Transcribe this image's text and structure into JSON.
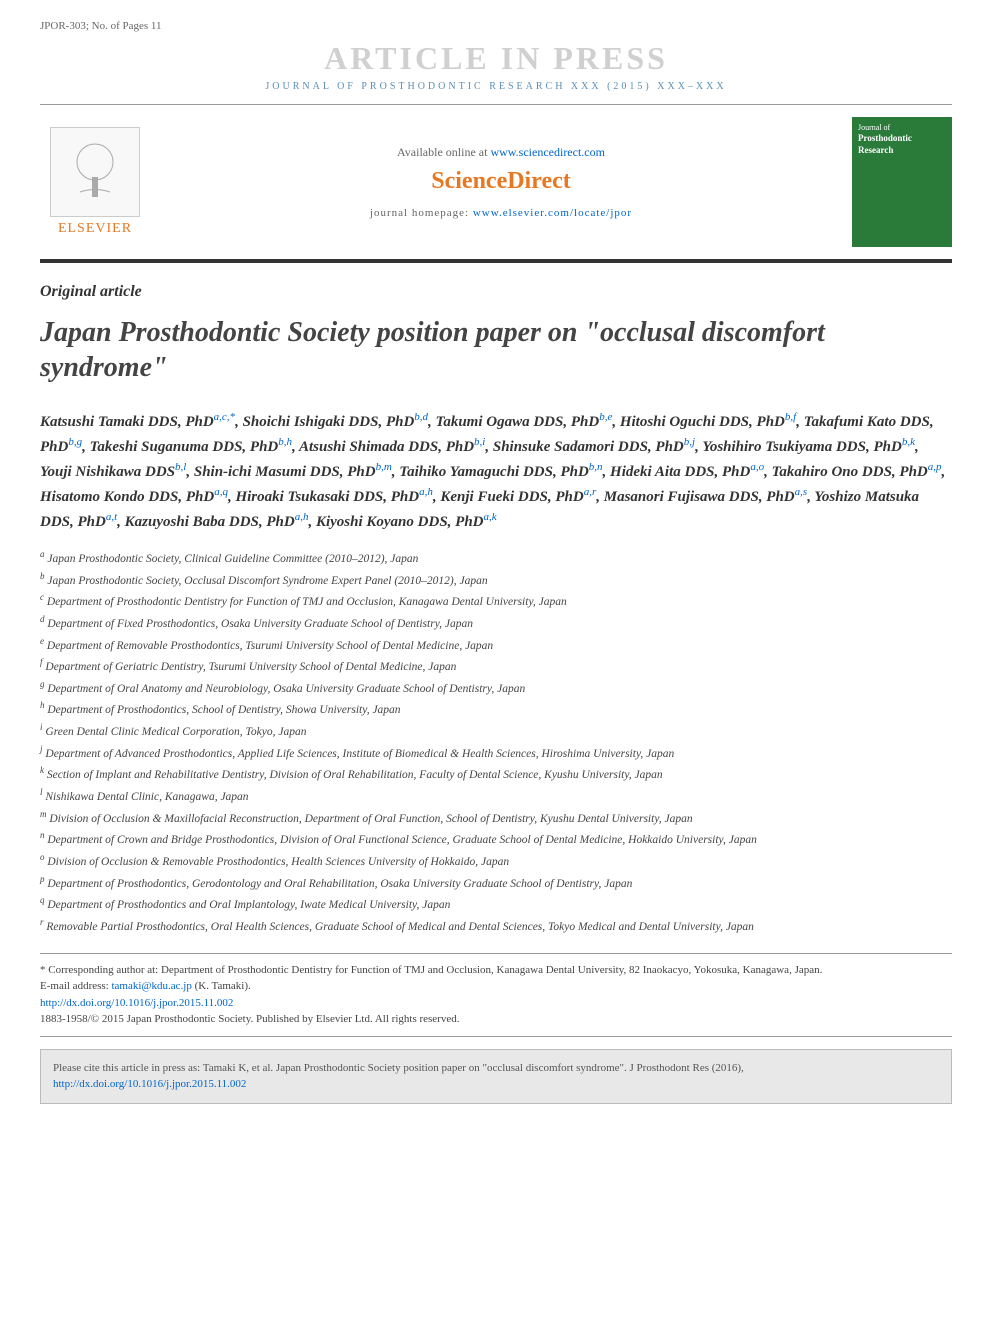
{
  "header": {
    "doc_id": "JPOR-303; No. of Pages 11",
    "watermark": "ARTICLE IN PRESS",
    "journal_ref": "JOURNAL OF PROSTHODONTIC RESEARCH XXX (2015) XXX–XXX",
    "available_text": "Available online at ",
    "available_link": "www.sciencedirect.com",
    "sciencedirect": "ScienceDirect",
    "homepage_label": "journal homepage: ",
    "homepage_link": "www.elsevier.com/locate/jpor",
    "elsevier": "ELSEVIER",
    "cover_journal": "Journal of",
    "cover_title": "Prosthodontic Research"
  },
  "article": {
    "type": "Original article",
    "title": "Japan Prosthodontic Society position paper on \"occlusal discomfort syndrome\""
  },
  "authors": [
    {
      "name": "Katsushi Tamaki",
      "deg": "DDS, PhD",
      "aff": "a,c,*"
    },
    {
      "name": "Shoichi Ishigaki",
      "deg": "DDS, PhD",
      "aff": "b,d"
    },
    {
      "name": "Takumi Ogawa",
      "deg": "DDS, PhD",
      "aff": "b,e"
    },
    {
      "name": "Hitoshi Oguchi",
      "deg": "DDS, PhD",
      "aff": "b,f"
    },
    {
      "name": "Takafumi Kato",
      "deg": "DDS, PhD",
      "aff": "b,g"
    },
    {
      "name": "Takeshi Suganuma",
      "deg": "DDS, PhD",
      "aff": "b,h"
    },
    {
      "name": "Atsushi Shimada",
      "deg": "DDS, PhD",
      "aff": "b,i"
    },
    {
      "name": "Shinsuke Sadamori",
      "deg": "DDS, PhD",
      "aff": "b,j"
    },
    {
      "name": "Yoshihiro Tsukiyama",
      "deg": "DDS, PhD",
      "aff": "b,k"
    },
    {
      "name": "Youji Nishikawa",
      "deg": "DDS",
      "aff": "b,l"
    },
    {
      "name": "Shin-ichi Masumi",
      "deg": "DDS, PhD",
      "aff": "b,m"
    },
    {
      "name": "Taihiko Yamaguchi",
      "deg": "DDS, PhD",
      "aff": "b,n"
    },
    {
      "name": "Hideki Aita",
      "deg": "DDS, PhD",
      "aff": "a,o"
    },
    {
      "name": "Takahiro Ono",
      "deg": "DDS, PhD",
      "aff": "a,p"
    },
    {
      "name": "Hisatomo Kondo",
      "deg": "DDS, PhD",
      "aff": "a,q"
    },
    {
      "name": "Hiroaki Tsukasaki",
      "deg": "DDS, PhD",
      "aff": "a,h"
    },
    {
      "name": "Kenji Fueki",
      "deg": "DDS, PhD",
      "aff": "a,r"
    },
    {
      "name": "Masanori Fujisawa",
      "deg": "DDS, PhD",
      "aff": "a,s"
    },
    {
      "name": "Yoshizo Matsuka",
      "deg": "DDS, PhD",
      "aff": "a,t"
    },
    {
      "name": "Kazuyoshi Baba",
      "deg": "DDS, PhD",
      "aff": "a,h"
    },
    {
      "name": "Kiyoshi Koyano",
      "deg": "DDS, PhD",
      "aff": "a,k"
    }
  ],
  "affiliations": [
    {
      "key": "a",
      "text": "Japan Prosthodontic Society, Clinical Guideline Committee (2010–2012), Japan"
    },
    {
      "key": "b",
      "text": "Japan Prosthodontic Society, Occlusal Discomfort Syndrome Expert Panel (2010–2012), Japan"
    },
    {
      "key": "c",
      "text": "Department of Prosthodontic Dentistry for Function of TMJ and Occlusion, Kanagawa Dental University, Japan"
    },
    {
      "key": "d",
      "text": "Department of Fixed Prosthodontics, Osaka University Graduate School of Dentistry, Japan"
    },
    {
      "key": "e",
      "text": "Department of Removable Prosthodontics, Tsurumi University School of Dental Medicine, Japan"
    },
    {
      "key": "f",
      "text": "Department of Geriatric Dentistry, Tsurumi University School of Dental Medicine, Japan"
    },
    {
      "key": "g",
      "text": "Department of Oral Anatomy and Neurobiology, Osaka University Graduate School of Dentistry, Japan"
    },
    {
      "key": "h",
      "text": "Department of Prosthodontics, School of Dentistry, Showa University, Japan"
    },
    {
      "key": "i",
      "text": "Green Dental Clinic Medical Corporation, Tokyo, Japan"
    },
    {
      "key": "j",
      "text": "Department of Advanced Prosthodontics, Applied Life Sciences, Institute of Biomedical & Health Sciences, Hiroshima University, Japan"
    },
    {
      "key": "k",
      "text": "Section of Implant and Rehabilitative Dentistry, Division of Oral Rehabilitation, Faculty of Dental Science, Kyushu University, Japan"
    },
    {
      "key": "l",
      "text": "Nishikawa Dental Clinic, Kanagawa, Japan"
    },
    {
      "key": "m",
      "text": "Division of Occlusion & Maxillofacial Reconstruction, Department of Oral Function, School of Dentistry, Kyushu Dental University, Japan"
    },
    {
      "key": "n",
      "text": "Department of Crown and Bridge Prosthodontics, Division of Oral Functional Science, Graduate School of Dental Medicine, Hokkaido University, Japan"
    },
    {
      "key": "o",
      "text": "Division of Occlusion & Removable Prosthodontics, Health Sciences University of Hokkaido, Japan"
    },
    {
      "key": "p",
      "text": "Department of Prosthodontics, Gerodontology and Oral Rehabilitation, Osaka University Graduate School of Dentistry, Japan"
    },
    {
      "key": "q",
      "text": "Department of Prosthodontics and Oral Implantology, Iwate Medical University, Japan"
    },
    {
      "key": "r",
      "text": "Removable Partial Prosthodontics, Oral Health Sciences, Graduate School of Medical and Dental Sciences, Tokyo Medical and Dental University, Japan"
    }
  ],
  "footer": {
    "corresponding": "* Corresponding author at: Department of Prosthodontic Dentistry for Function of TMJ and Occlusion, Kanagawa Dental University, 82 Inaokacyo, Yokosuka, Kanagawa, Japan.",
    "email_label": "E-mail address: ",
    "email": "tamaki@kdu.ac.jp",
    "email_who": " (K. Tamaki).",
    "doi": "http://dx.doi.org/10.1016/j.jpor.2015.11.002",
    "copyright": "1883-1958/© 2015 Japan Prosthodontic Society. Published by Elsevier Ltd. All rights reserved.",
    "citation_text": "Please cite this article in press as: Tamaki K, et al. Japan Prosthodontic Society position paper on \"occlusal discomfort syndrome\". J Prosthodont Res (2016), ",
    "citation_doi": "http://dx.doi.org/10.1016/j.jpor.2015.11.002"
  },
  "colors": {
    "link": "#0066cc",
    "orange": "#e87722",
    "watermark": "#d0d0d0",
    "journal_ref": "#5a8fb5",
    "cover_bg": "#2a7a3a"
  }
}
